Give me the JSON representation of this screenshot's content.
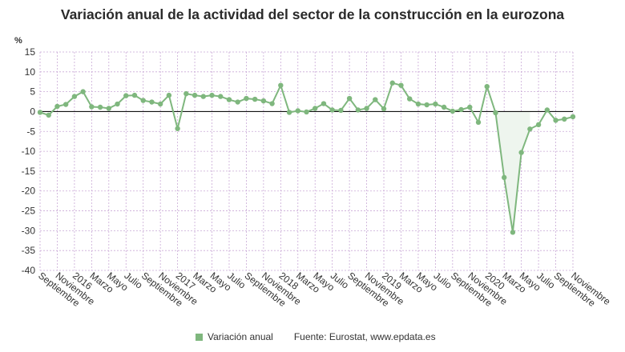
{
  "title": "Variación anual de la actividad del sector de la construcción en la eurozona",
  "source": "Fuente: Eurostat, www.epdata.es",
  "colors": {
    "series": "#7fb77e",
    "zero_line": "#111111",
    "grid": "#c9a9d6"
  },
  "chart_data": {
    "type": "line",
    "title": "Variación anual de la actividad del sector de la construcción en la eurozona",
    "ylabel": "%",
    "xlabel": "",
    "ylim": [
      -40,
      15
    ],
    "yticks": [
      15,
      10,
      5,
      0,
      -5,
      -10,
      -15,
      -20,
      -25,
      -30,
      -35,
      -40
    ],
    "grid": true,
    "legend": "bottom",
    "x": [
      "2015-09",
      "2015-10",
      "2015-11",
      "2015-12",
      "2016-01",
      "2016-02",
      "2016-03",
      "2016-04",
      "2016-05",
      "2016-06",
      "2016-07",
      "2016-08",
      "2016-09",
      "2016-10",
      "2016-11",
      "2016-12",
      "2017-01",
      "2017-02",
      "2017-03",
      "2017-04",
      "2017-05",
      "2017-06",
      "2017-07",
      "2017-08",
      "2017-09",
      "2017-10",
      "2017-11",
      "2017-12",
      "2018-01",
      "2018-02",
      "2018-03",
      "2018-04",
      "2018-05",
      "2018-06",
      "2018-07",
      "2018-08",
      "2018-09",
      "2018-10",
      "2018-11",
      "2018-12",
      "2019-01",
      "2019-02",
      "2019-03",
      "2019-04",
      "2019-05",
      "2019-06",
      "2019-07",
      "2019-08",
      "2019-09",
      "2019-10",
      "2019-11",
      "2019-12",
      "2020-01",
      "2020-02",
      "2020-03",
      "2020-04",
      "2020-05",
      "2020-06",
      "2020-07",
      "2020-08",
      "2020-09",
      "2020-10",
      "2020-11"
    ],
    "tick_labels": [
      {
        "index": 0,
        "label": "Septiembre"
      },
      {
        "index": 2,
        "label": "Noviembre"
      },
      {
        "index": 4,
        "label": "2016"
      },
      {
        "index": 6,
        "label": "Marzo"
      },
      {
        "index": 8,
        "label": "Mayo"
      },
      {
        "index": 10,
        "label": "Julio"
      },
      {
        "index": 12,
        "label": "Septiembre"
      },
      {
        "index": 14,
        "label": "Noviembre"
      },
      {
        "index": 16,
        "label": "2017"
      },
      {
        "index": 18,
        "label": "Marzo"
      },
      {
        "index": 20,
        "label": "Mayo"
      },
      {
        "index": 22,
        "label": "Julio"
      },
      {
        "index": 24,
        "label": "Septiembre"
      },
      {
        "index": 26,
        "label": "Noviembre"
      },
      {
        "index": 28,
        "label": "2018"
      },
      {
        "index": 30,
        "label": "Marzo"
      },
      {
        "index": 32,
        "label": "Mayo"
      },
      {
        "index": 34,
        "label": "Julio"
      },
      {
        "index": 36,
        "label": "Septiembre"
      },
      {
        "index": 38,
        "label": "Noviembre"
      },
      {
        "index": 40,
        "label": "2019"
      },
      {
        "index": 42,
        "label": "Marzo"
      },
      {
        "index": 44,
        "label": "Mayo"
      },
      {
        "index": 46,
        "label": "Julio"
      },
      {
        "index": 48,
        "label": "Septiembre"
      },
      {
        "index": 50,
        "label": "Noviembre"
      },
      {
        "index": 52,
        "label": "2020"
      },
      {
        "index": 54,
        "label": "Marzo"
      },
      {
        "index": 56,
        "label": "Mayo"
      },
      {
        "index": 58,
        "label": "Julio"
      },
      {
        "index": 60,
        "label": "Septiembre"
      },
      {
        "index": 62,
        "label": "Noviembre"
      }
    ],
    "series": [
      {
        "name": "Variación anual",
        "values": [
          -0.2,
          -0.9,
          1.3,
          1.8,
          3.8,
          5.0,
          1.2,
          1.1,
          0.8,
          1.9,
          4.0,
          4.1,
          2.8,
          2.4,
          1.9,
          4.1,
          -4.3,
          4.5,
          4.1,
          3.8,
          4.1,
          3.8,
          3.0,
          2.4,
          3.3,
          3.1,
          2.7,
          2.0,
          6.6,
          -0.2,
          0.2,
          -0.1,
          0.8,
          2.0,
          0.4,
          0.3,
          3.3,
          0.4,
          0.8,
          3.0,
          0.7,
          7.2,
          6.6,
          3.2,
          1.9,
          1.7,
          1.9,
          1.1,
          0.1,
          0.5,
          1.1,
          -2.7,
          6.3,
          -0.3,
          -16.6,
          -30.4,
          -10.3,
          -4.4,
          -3.3,
          0.4,
          -2.2,
          -1.9,
          -1.3
        ]
      }
    ]
  }
}
